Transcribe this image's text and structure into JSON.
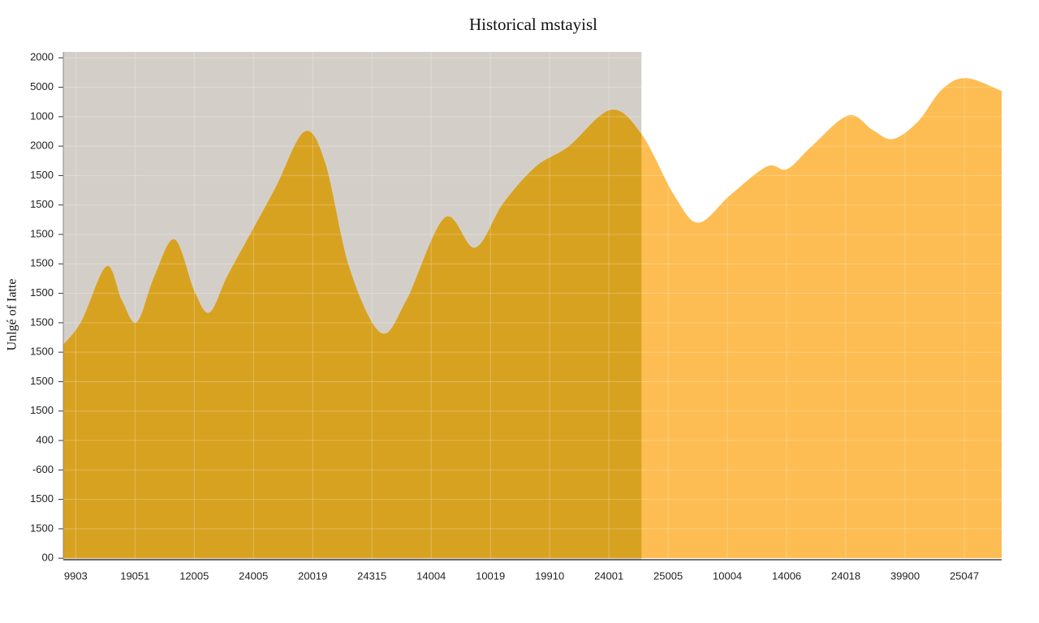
{
  "chart_data": {
    "type": "area",
    "title": "Historical mstayisl",
    "y_label": "Unlgé of Iatte",
    "xlim": [
      -0.21,
      15.63
    ],
    "ylim": [
      -0.05,
      17.2
    ],
    "xticks": [
      {
        "value": 0,
        "label": "9903"
      },
      {
        "value": 1,
        "label": "19051"
      },
      {
        "value": 2,
        "label": "12005"
      },
      {
        "value": 3,
        "label": "24005"
      },
      {
        "value": 4,
        "label": "20019"
      },
      {
        "value": 5,
        "label": "24315"
      },
      {
        "value": 6,
        "label": "14004"
      },
      {
        "value": 7,
        "label": "10019"
      },
      {
        "value": 8,
        "label": "19910"
      },
      {
        "value": 9,
        "label": "24001"
      },
      {
        "value": 10,
        "label": "25005"
      },
      {
        "value": 11,
        "label": "10004"
      },
      {
        "value": 12,
        "label": "14006"
      },
      {
        "value": 13,
        "label": "24018"
      },
      {
        "value": 14,
        "label": "39900"
      },
      {
        "value": 15,
        "label": "25047"
      }
    ],
    "yticks": [
      {
        "value": 0,
        "label": "00"
      },
      {
        "value": 1,
        "label": "1500"
      },
      {
        "value": 2,
        "label": "1500"
      },
      {
        "value": 3,
        "label": "-600"
      },
      {
        "value": 4,
        "label": "400"
      },
      {
        "value": 5,
        "label": "1500"
      },
      {
        "value": 6,
        "label": "1500"
      },
      {
        "value": 7,
        "label": "1500"
      },
      {
        "value": 8,
        "label": "1500"
      },
      {
        "value": 9,
        "label": "1500"
      },
      {
        "value": 10,
        "label": "1500"
      },
      {
        "value": 11,
        "label": "1500"
      },
      {
        "value": 12,
        "label": "1500"
      },
      {
        "value": 13,
        "label": "1500"
      },
      {
        "value": 14,
        "label": "2000"
      },
      {
        "value": 15,
        "label": "1000"
      },
      {
        "value": 16,
        "label": "5000"
      },
      {
        "value": 17,
        "label": "2000"
      }
    ],
    "grid": true,
    "highlight_span": [
      -0.21,
      9.55
    ],
    "highlight_background": "#d3cfc8",
    "series": [
      {
        "color": "#fdbd52",
        "highlight_color": "#d8a221",
        "x": [
          -0.21,
          0.1,
          0.52,
          0.78,
          1.03,
          1.33,
          1.67,
          2.01,
          2.26,
          2.56,
          2.97,
          3.38,
          3.86,
          4.21,
          4.62,
          5.15,
          5.58,
          6.23,
          6.74,
          7.22,
          7.77,
          8.32,
          9.03,
          9.55,
          10.1,
          10.51,
          11.05,
          11.67,
          12.01,
          12.42,
          13.04,
          13.45,
          13.79,
          14.21,
          14.62,
          15.03,
          15.63
        ],
        "values": [
          7.25,
          8.07,
          9.92,
          8.76,
          8.02,
          9.59,
          10.83,
          9.04,
          8.35,
          9.59,
          11.1,
          12.62,
          14.49,
          13.44,
          9.86,
          7.66,
          8.76,
          11.57,
          10.55,
          12.07,
          13.31,
          13.99,
          15.23,
          14.41,
          12.34,
          11.4,
          12.34,
          13.31,
          13.22,
          13.99,
          15.04,
          14.55,
          14.24,
          14.82,
          15.92,
          16.31,
          15.87
        ]
      }
    ]
  }
}
